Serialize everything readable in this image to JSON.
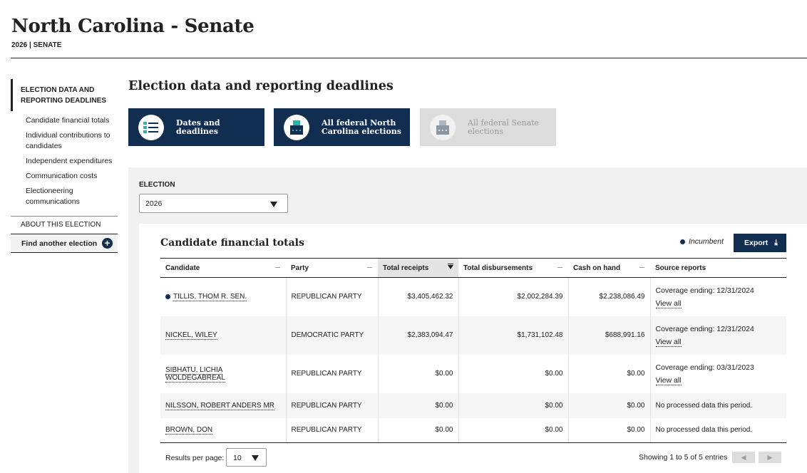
{
  "header": {
    "title": "North Carolina - Senate",
    "subtitle": "2026 | SENATE"
  },
  "sidebar": {
    "active_section": "ELECTION DATA AND REPORTING DEADLINES",
    "items": [
      {
        "label": "Candidate financial totals"
      },
      {
        "label": "Individual contributions to candidates"
      },
      {
        "label": "Independent expenditures"
      },
      {
        "label": "Communication costs"
      },
      {
        "label": "Electioneering communications"
      }
    ],
    "about": "ABOUT THIS ELECTION",
    "find_another": "Find another election"
  },
  "main": {
    "section_title": "Election data and reporting deadlines",
    "tiles": [
      {
        "label": "Dates and deadlines",
        "icon": "checklist-icon"
      },
      {
        "label": "All federal North Carolina elections",
        "icon": "ballot-box-icon"
      },
      {
        "label": "All federal Senate elections",
        "icon": "ballot-box-icon"
      }
    ],
    "election_label": "ELECTION",
    "election_value": "2026"
  },
  "table": {
    "title": "Candidate financial totals",
    "legend_incumbent": "Incumbent",
    "export_label": "Export",
    "columns": [
      "Candidate",
      "Party",
      "Total receipts",
      "Total disbursements",
      "Cash on hand",
      "Source reports"
    ],
    "rows": [
      {
        "candidate": "TILLIS, THOM R. SEN.",
        "incumbent": true,
        "party": "REPUBLICAN PARTY",
        "receipts": "$3,405,462.32",
        "disbursements": "$2,002,284.39",
        "cash": "$2,238,086.49",
        "source": "Coverage ending: 12/31/2024",
        "view_all": "View all"
      },
      {
        "candidate": "NICKEL, WILEY",
        "incumbent": false,
        "party": "DEMOCRATIC PARTY",
        "receipts": "$2,383,094.47",
        "disbursements": "$1,731,102.48",
        "cash": "$688,991.16",
        "source": "Coverage ending: 12/31/2024",
        "view_all": "View all"
      },
      {
        "candidate": "SIBHATU, LICHIA WOLDEGABREAL",
        "incumbent": false,
        "party": "REPUBLICAN PARTY",
        "receipts": "$0.00",
        "disbursements": "$0.00",
        "cash": "$0.00",
        "source": "Coverage ending: 03/31/2023",
        "view_all": "View all"
      },
      {
        "candidate": "NILSSON, ROBERT ANDERS MR",
        "incumbent": false,
        "party": "REPUBLICAN PARTY",
        "receipts": "$0.00",
        "disbursements": "$0.00",
        "cash": "$0.00",
        "source": "No processed data this period."
      },
      {
        "candidate": "BROWN, DON",
        "incumbent": false,
        "party": "REPUBLICAN PARTY",
        "receipts": "$0.00",
        "disbursements": "$0.00",
        "cash": "$0.00",
        "source": "No processed data this period."
      }
    ],
    "results_per_page_label": "Results per page:",
    "results_per_page_value": "10",
    "showing": "Showing 1 to 5 of 5 entries",
    "prev_icon": "◀",
    "next_icon": "▶"
  },
  "colors": {
    "navy": "#112e51",
    "panel_gray": "#f1f1f1",
    "disabled_gray": "#dcdcdc"
  }
}
